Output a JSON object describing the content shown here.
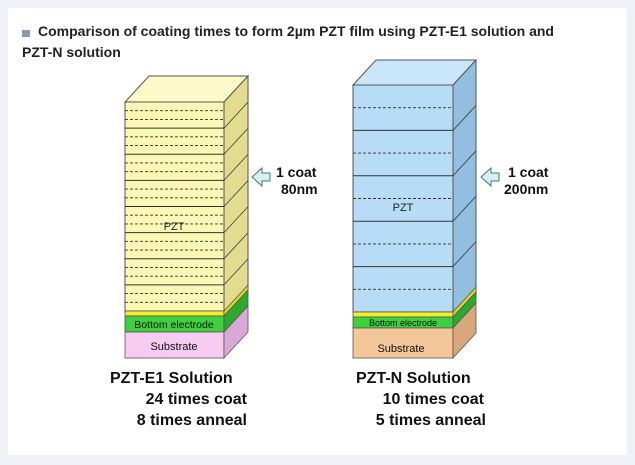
{
  "title": {
    "line1": "Comparison of coating times to form 2µm PZT film using PZT-E1 solution and",
    "line2": "PZT-N solution"
  },
  "left_stack": {
    "layer_label": "PZT",
    "electrode_label": "Bottom electrode",
    "substrate_label": "Substrate",
    "coat_label_1": "1 coat",
    "coat_label_2": "80nm",
    "caption_1": "PZT-E1 Solution",
    "caption_2": "24 times coat",
    "caption_3": "8 times anneal",
    "coats": 24,
    "anneals": 8,
    "coat_thickness_nm": 80
  },
  "right_stack": {
    "layer_label": "PZT",
    "electrode_label": "Bottom electrode",
    "substrate_label": "Substrate",
    "coat_label_1": "1 coat",
    "coat_label_2": "200nm",
    "caption_1": "PZT-N Solution",
    "caption_2": "10 times coat",
    "caption_3": "5 times anneal",
    "coats": 10,
    "anneals": 5,
    "coat_thickness_nm": 200
  },
  "colors": {
    "pzt_e1_front": "#fbf7b4",
    "pzt_e1_side": "#e2dd8e",
    "pzt_n_front": "#b7dcf6",
    "pzt_n_side": "#92bfe0",
    "electrode": "#3dd13d",
    "electrode_thin": "#f2ef2a",
    "substrate_e1": "#f8cbf3",
    "substrate_n": "#f4c79b",
    "arrow": "#d8eef0"
  }
}
